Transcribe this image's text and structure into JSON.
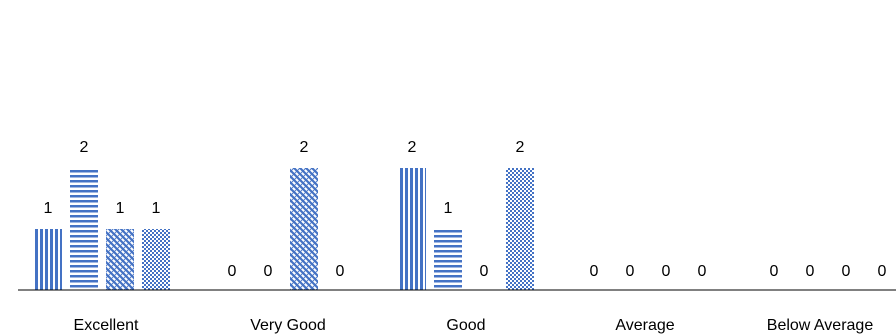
{
  "chart_data": {
    "type": "bar",
    "categories": [
      "Excellent",
      "Very Good",
      "Good",
      "Average",
      "Below Average"
    ],
    "series": [
      {
        "values": [
          1,
          0,
          2,
          0,
          0
        ],
        "pattern": "vertical-lines"
      },
      {
        "values": [
          2,
          0,
          1,
          0,
          0
        ],
        "pattern": "horizontal-lines"
      },
      {
        "values": [
          1,
          2,
          0,
          0,
          0
        ],
        "pattern": "diagonal-weave"
      },
      {
        "values": [
          1,
          0,
          2,
          0,
          0
        ],
        "pattern": "dotted-grid"
      }
    ],
    "ylim": [
      0,
      2
    ],
    "data_labels": true,
    "grid": false,
    "legend": "none",
    "colors": {
      "bar": "#4472C4",
      "axis": "#000000",
      "text": "#000000"
    }
  }
}
